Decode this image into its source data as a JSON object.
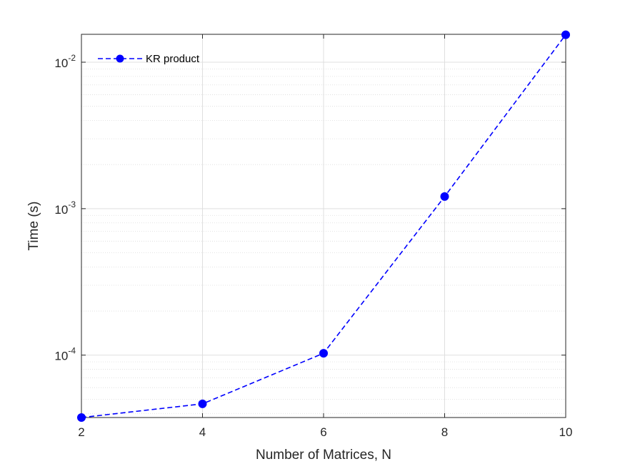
{
  "chart_data": {
    "type": "line",
    "title": "",
    "xlabel": "Number of Matrices, N",
    "ylabel": "Time (s)",
    "x_scale": "linear",
    "y_scale": "log",
    "xlim": [
      2,
      10
    ],
    "ylim": [
      3.75e-05,
      0.0155
    ],
    "x_ticks": [
      2,
      4,
      6,
      8,
      10
    ],
    "x_tick_labels": [
      "2",
      "4",
      "6",
      "8",
      "10"
    ],
    "y_ticks": [
      {
        "value": 0.0001,
        "base": "10",
        "exp": "-4"
      },
      {
        "value": 0.001,
        "base": "10",
        "exp": "-3"
      },
      {
        "value": 0.01,
        "base": "10",
        "exp": "-2"
      }
    ],
    "grid": true,
    "minor_grid_y": true,
    "legend_position": "top-left",
    "series": [
      {
        "name": "KR product",
        "color": "#0000ff",
        "line_style": "dashed",
        "marker": "circle",
        "x": [
          2,
          4,
          6,
          8,
          10
        ],
        "y": [
          3.75e-05,
          4.65e-05,
          0.000103,
          0.00121,
          0.0154
        ]
      }
    ]
  }
}
